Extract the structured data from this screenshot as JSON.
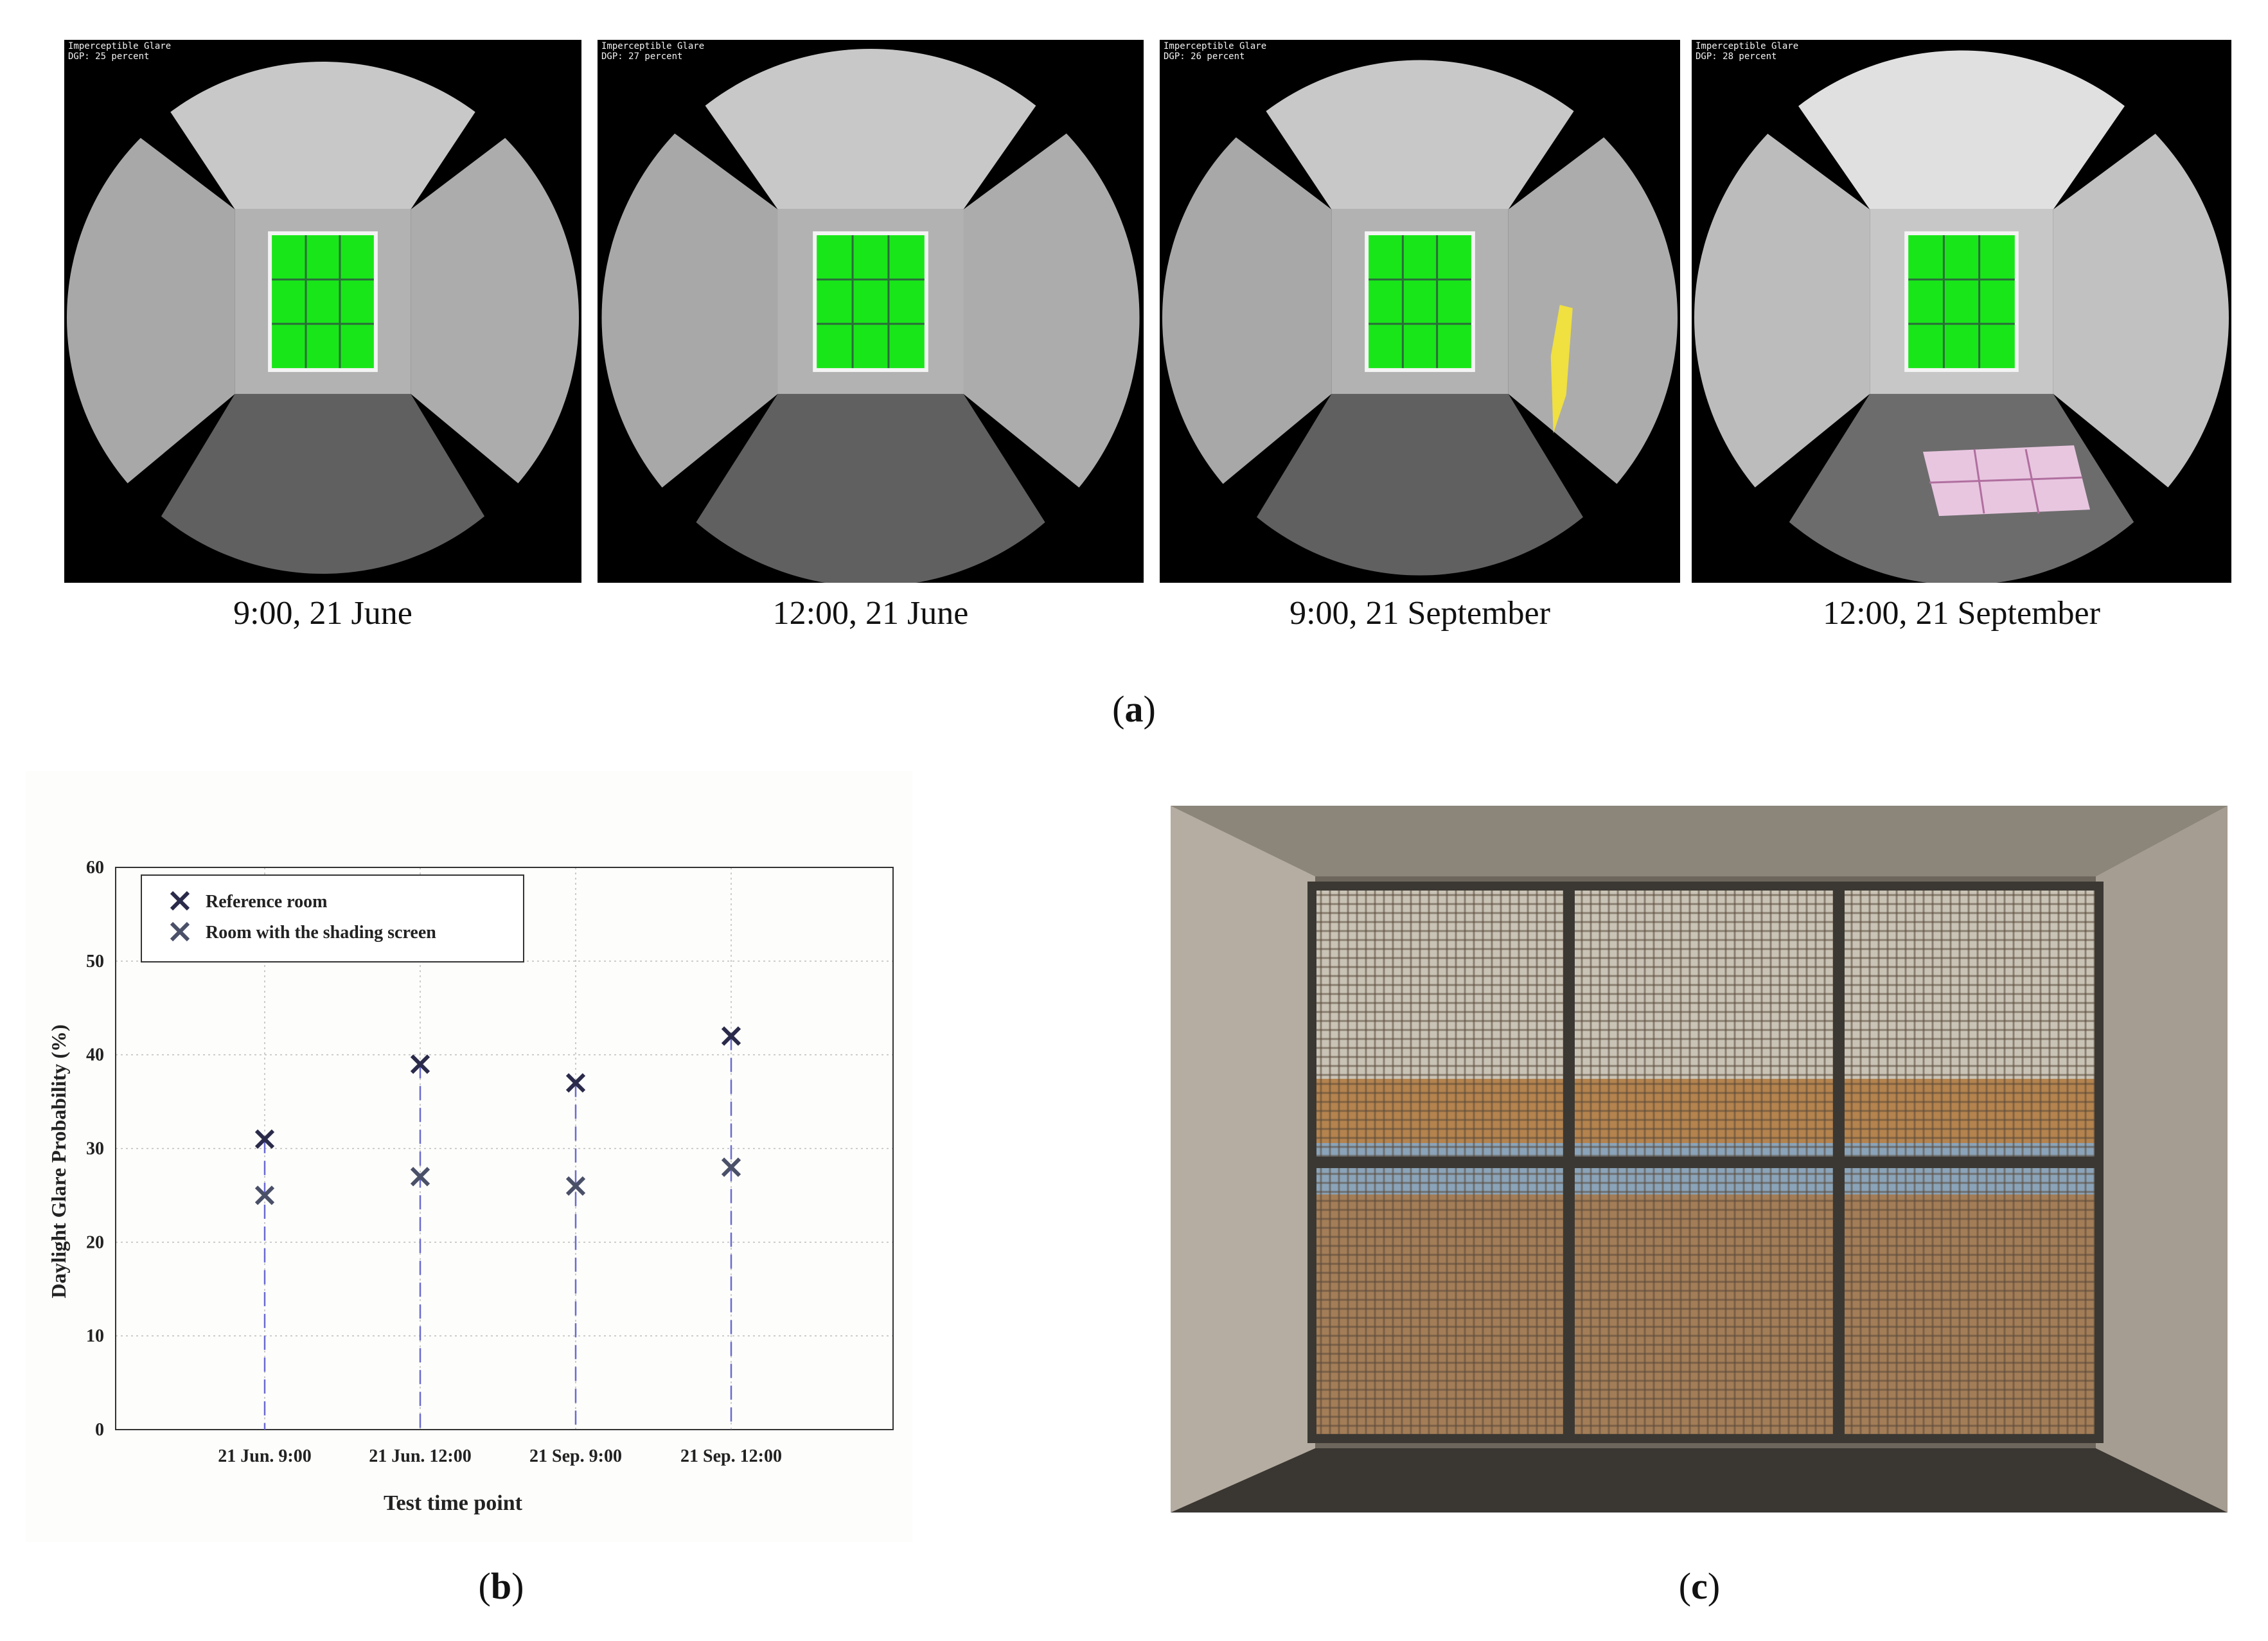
{
  "panel_a": {
    "letter": "a",
    "renders": [
      {
        "tag_line1": "Imperceptible Glare",
        "tag_line2": "DGP: 25 percent",
        "caption": "9:00, 21 June"
      },
      {
        "tag_line1": "Imperceptible Glare",
        "tag_line2": "DGP: 27 percent",
        "caption": "12:00, 21 June"
      },
      {
        "tag_line1": "Imperceptible Glare",
        "tag_line2": "DGP: 26 percent",
        "caption": "9:00, 21 September"
      },
      {
        "tag_line1": "Imperceptible Glare",
        "tag_line2": "DGP: 28 percent",
        "caption": "12:00, 21 September"
      }
    ],
    "colors": {
      "glare_source": "#19e619",
      "wall_glare": "#f0e040",
      "floor_patch": "#e8c6e0"
    }
  },
  "panel_b": {
    "letter": "b"
  },
  "panel_c": {
    "letter": "c"
  },
  "chart_data": {
    "type": "scatter",
    "categories": [
      "21 Jun. 9:00",
      "21 Jun. 12:00",
      "21 Sep. 9:00",
      "21 Sep. 12:00"
    ],
    "series": [
      {
        "name": "Reference room",
        "values": [
          31,
          39,
          37,
          42
        ],
        "color": "#2a2a4a",
        "marker": "x"
      },
      {
        "name": "Room with the shading screen",
        "values": [
          25,
          27,
          26,
          28
        ],
        "color": "#4a5068",
        "marker": "x"
      }
    ],
    "xlabel": "Test time point",
    "ylabel": "Daylight Glare Probability (%)",
    "ylim": [
      0,
      60
    ],
    "yticks": [
      0,
      10,
      20,
      30,
      40,
      50,
      60
    ],
    "grid": true,
    "legend_position": "top-left",
    "dropline_color": "#6a6ad0"
  }
}
